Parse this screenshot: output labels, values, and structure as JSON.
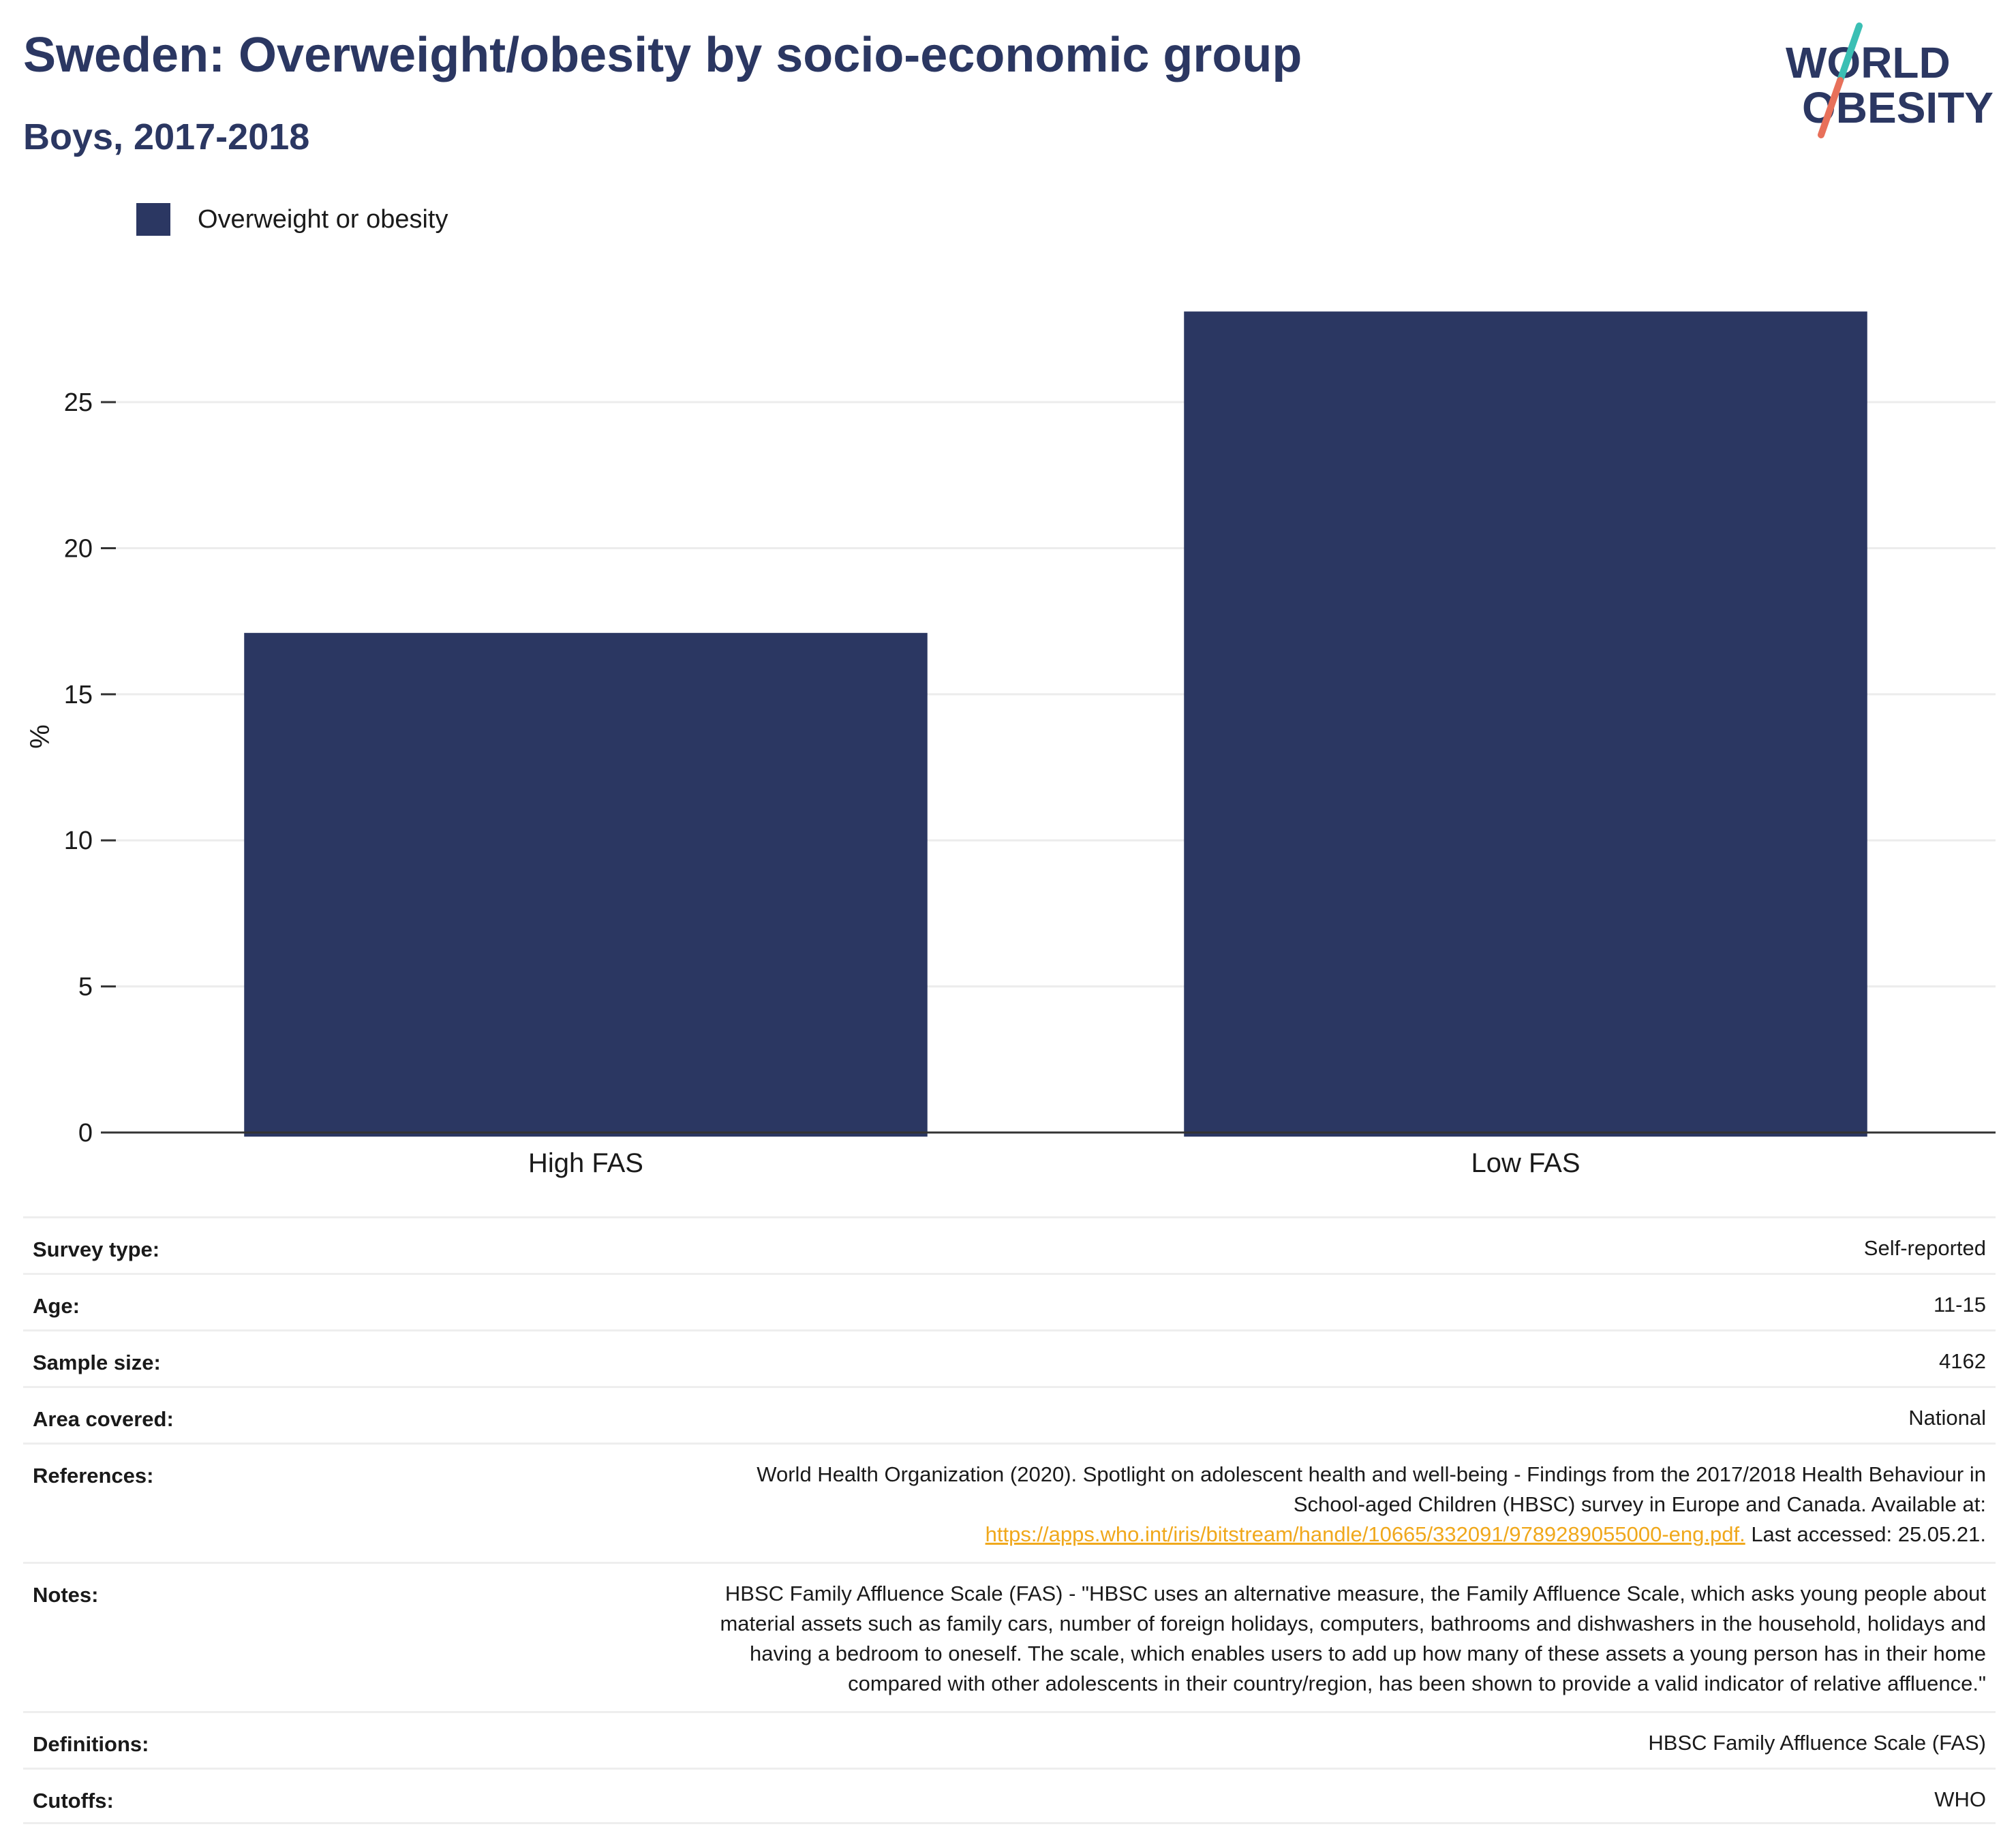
{
  "title": "Sweden: Overweight/obesity by socio-economic group",
  "subtitle": "Boys, 2017-2018",
  "logo": {
    "line1": "WORLD",
    "line2": "OBESITY",
    "colors": {
      "text": "#2b3762",
      "slash_top": "#3bbfb4",
      "slash_bottom": "#e8705a"
    }
  },
  "legend": {
    "label": "Overweight or obesity",
    "color": "#2b3762"
  },
  "chart_data": {
    "type": "bar",
    "categories": [
      "High FAS",
      "Low FAS"
    ],
    "series": [
      {
        "name": "Overweight or obesity",
        "values": [
          17.1,
          28.1
        ],
        "color": "#2b3762"
      }
    ],
    "xlabel": "",
    "ylabel": "%",
    "ylim": [
      0,
      28.5
    ],
    "yticks": [
      0,
      5,
      10,
      15,
      20,
      25
    ],
    "grid": true,
    "legend_position": "top-left"
  },
  "meta": {
    "survey_type": {
      "label": "Survey type:",
      "value": "Self-reported"
    },
    "age": {
      "label": "Age:",
      "value": "11-15"
    },
    "sample_size": {
      "label": "Sample size:",
      "value": "4162"
    },
    "area": {
      "label": "Area covered:",
      "value": "National"
    },
    "references": {
      "label": "References:",
      "line1": "World Health Organization (2020). Spotlight on adolescent health and well-being - Findings from the 2017/2018 Health Behaviour in",
      "line2": "School-aged Children (HBSC) survey in Europe and Canada. Available at:",
      "link": "https://apps.who.int/iris/bitstream/handle/10665/332091/9789289055000-eng.pdf.",
      "suffix": " Last accessed: 25.05.21."
    },
    "notes": {
      "label": "Notes:",
      "line1": "HBSC Family Affluence Scale (FAS) - \"HBSC uses an alternative measure, the Family Affluence Scale, which asks young people about",
      "line2": "material assets such as family cars, number of foreign holidays, computers, bathrooms and dishwashers in the household, holidays and",
      "line3": "having a bedroom to oneself. The scale, which enables users to add up how many of these assets a young person has in their home",
      "line4": "compared with other adolescents in their country/region, has been shown to provide a valid indicator of relative affluence.\""
    },
    "definitions": {
      "label": "Definitions:",
      "value": "HBSC Family Affluence Scale (FAS)"
    },
    "cutoffs": {
      "label": "Cutoffs:",
      "value": "WHO"
    }
  }
}
